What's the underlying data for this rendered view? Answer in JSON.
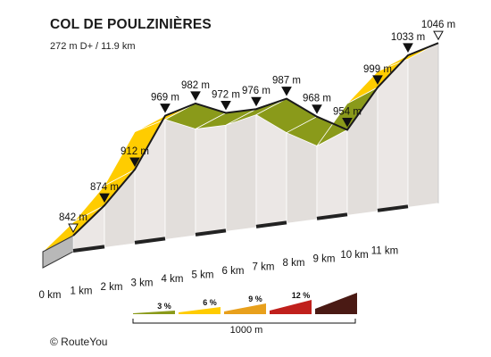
{
  "title": "COL DE POULZINIÈRES",
  "subtitle": "272 m D+ / 11.9 km",
  "credit": "© RouteYou",
  "chart_data": {
    "type": "area",
    "title": "COL DE POULZINIÈRES",
    "subtitle": "272 m D+ / 11.9 km",
    "x_unit": "km",
    "y_unit": "m",
    "distance_labels": [
      "0 km",
      "1 km",
      "2 km",
      "3 km",
      "4 km",
      "5 km",
      "6 km",
      "7 km",
      "8 km",
      "9 km",
      "10 km",
      "11 km"
    ],
    "profile": [
      {
        "x": 0,
        "y": 842
      },
      {
        "x": 1,
        "y": 874
      },
      {
        "x": 2,
        "y": 912
      },
      {
        "x": 3,
        "y": 969
      },
      {
        "x": 4,
        "y": 982
      },
      {
        "x": 5,
        "y": 972
      },
      {
        "x": 6,
        "y": 976
      },
      {
        "x": 7,
        "y": 987
      },
      {
        "x": 8,
        "y": 968
      },
      {
        "x": 9,
        "y": 954
      },
      {
        "x": 10,
        "y": 999
      },
      {
        "x": 11,
        "y": 1033
      },
      {
        "x": 11.9,
        "y": 1046
      }
    ],
    "elevation_labels": [
      "842 m",
      "874 m",
      "912 m",
      "969 m",
      "982 m",
      "972 m",
      "976 m",
      "987 m",
      "968 m",
      "954 m",
      "999 m",
      "1033 m",
      "1046 m"
    ],
    "segments_grade_class": [
      2,
      2,
      2,
      2,
      1,
      1,
      1,
      1,
      1,
      1,
      2,
      2,
      1
    ],
    "legend": [
      {
        "label": "3 %",
        "color": "#8a9a1a"
      },
      {
        "label": "6 %",
        "color": "#ffcc00"
      },
      {
        "label": "9 %",
        "color": "#e8a01c"
      },
      {
        "label": "12 %",
        "color": "#c0201c"
      },
      {
        "label": "",
        "color": "#4a1a14"
      }
    ],
    "scale_label": "1000 m",
    "colors": {
      "grade_3": "#8a9a1a",
      "grade_6": "#ffcc00",
      "side": "#e8e4e2",
      "base": "#c8c8c8"
    }
  }
}
